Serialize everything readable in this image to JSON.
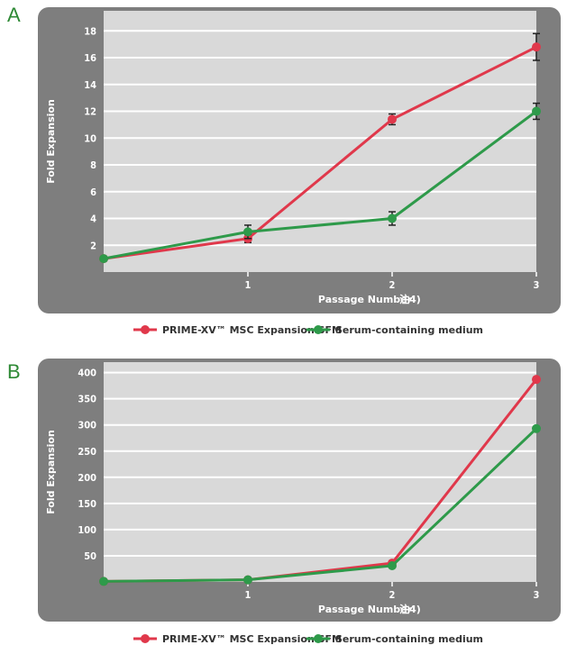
{
  "chart_data": [
    {
      "panel": "A",
      "type": "line",
      "xlabel": "Passage Number",
      "xlabel_note": "注4)",
      "ylabel": "Fold Expansion",
      "x": [
        0,
        1,
        2,
        3
      ],
      "x_ticks": [
        "1",
        "2",
        "3"
      ],
      "y_ticks": [
        "2",
        "4",
        "6",
        "8",
        "10",
        "12",
        "14",
        "16",
        "18"
      ],
      "ylim": [
        0,
        19.5
      ],
      "grid": "horizontal",
      "series": [
        {
          "name": "PRIME-XV™ MSC Expansion SFM",
          "values": [
            1,
            2.5,
            11.4,
            16.8
          ],
          "err": [
            0,
            0.3,
            0.4,
            1.0
          ]
        },
        {
          "name": "Serum-containing medium",
          "values": [
            1,
            3.0,
            4.0,
            12.0
          ],
          "err": [
            0,
            0.5,
            0.5,
            0.6
          ]
        }
      ],
      "legend": "bottom"
    },
    {
      "panel": "B",
      "type": "line",
      "xlabel": "Passage Number",
      "xlabel_note": "注4)",
      "ylabel": "Fold Expansion",
      "x": [
        0,
        1,
        2,
        3
      ],
      "x_ticks": [
        "1",
        "2",
        "3"
      ],
      "y_ticks": [
        "50",
        "100",
        "150",
        "200",
        "250",
        "300",
        "350",
        "400"
      ],
      "ylim": [
        0,
        420
      ],
      "grid": "horizontal",
      "series": [
        {
          "name": "PRIME-XV™ MSC Expansion SFM",
          "values": [
            1,
            4,
            36,
            387
          ]
        },
        {
          "name": "Serum-containing medium",
          "values": [
            1,
            4,
            31,
            293
          ]
        }
      ],
      "legend": "bottom"
    }
  ],
  "colors": {
    "sfm": "#e0384b",
    "serum": "#2e9a4a",
    "plot_bg": "#d9d9d9",
    "frame": "#7e7e7e"
  }
}
